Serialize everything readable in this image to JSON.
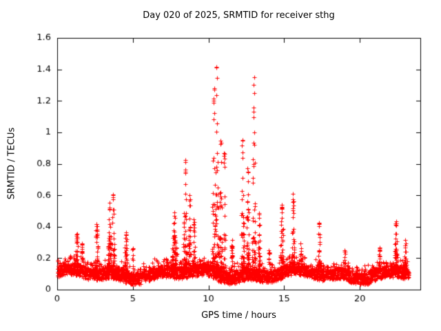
{
  "figure": {
    "background": "#ffffff",
    "border_color": "#000000",
    "text_color": "#000000"
  },
  "chart_data": {
    "type": "scatter",
    "title": "Day 020 of 2025, SRMTID for receiver sthg",
    "xlabel": "GPS time / hours",
    "ylabel": "SRMTID / TECUs",
    "xlim": [
      0,
      24
    ],
    "ylim": [
      0,
      1.6
    ],
    "xticks": [
      0,
      5,
      10,
      15,
      20
    ],
    "yticks": [
      0,
      0.2,
      0.4,
      0.6,
      0.8,
      1,
      1.2,
      1.4,
      1.6
    ],
    "grid": false,
    "legend": "none",
    "marker": "plus",
    "marker_color": "#ff0000",
    "series": [
      {
        "name": "SRMTID",
        "t_range": [
          0,
          23.25
        ],
        "cadence_hours": 0.01,
        "seed": 20250120,
        "baseline": {
          "typ": 0.1,
          "min": 0.04,
          "max": 0.2
        },
        "bursts": [
          {
            "t": 0.9,
            "peak": 0.22,
            "w": 0.1
          },
          {
            "t": 1.3,
            "peak": 0.35,
            "w": 0.12
          },
          {
            "t": 1.65,
            "peak": 0.3,
            "w": 0.08
          },
          {
            "t": 2.6,
            "peak": 0.42,
            "w": 0.12
          },
          {
            "t": 3.45,
            "peak": 0.55,
            "w": 0.12
          },
          {
            "t": 3.7,
            "peak": 0.61,
            "w": 0.1
          },
          {
            "t": 4.55,
            "peak": 0.38,
            "w": 0.12
          },
          {
            "t": 5.0,
            "peak": 0.27,
            "w": 0.08
          },
          {
            "t": 7.75,
            "peak": 0.5,
            "w": 0.18
          },
          {
            "t": 8.45,
            "peak": 0.83,
            "w": 0.1
          },
          {
            "t": 8.75,
            "peak": 0.62,
            "w": 0.08
          },
          {
            "t": 9.05,
            "peak": 0.45,
            "w": 0.07
          },
          {
            "t": 10.35,
            "peak": 1.3,
            "w": 0.1
          },
          {
            "t": 10.55,
            "peak": 1.47,
            "w": 0.08
          },
          {
            "t": 10.8,
            "peak": 0.95,
            "w": 0.08
          },
          {
            "t": 11.05,
            "peak": 0.9,
            "w": 0.06
          },
          {
            "t": 11.55,
            "peak": 0.3,
            "w": 0.08
          },
          {
            "t": 12.25,
            "peak": 0.97,
            "w": 0.1
          },
          {
            "t": 12.6,
            "peak": 0.8,
            "w": 0.08
          },
          {
            "t": 13.0,
            "peak": 1.35,
            "w": 0.09
          },
          {
            "t": 13.35,
            "peak": 0.5,
            "w": 0.08
          },
          {
            "t": 14.0,
            "peak": 0.25,
            "w": 0.1
          },
          {
            "t": 14.85,
            "peak": 0.55,
            "w": 0.12
          },
          {
            "t": 15.6,
            "peak": 0.62,
            "w": 0.1
          },
          {
            "t": 16.1,
            "peak": 0.3,
            "w": 0.08
          },
          {
            "t": 17.3,
            "peak": 0.45,
            "w": 0.08
          },
          {
            "t": 19.0,
            "peak": 0.25,
            "w": 0.12
          },
          {
            "t": 21.3,
            "peak": 0.27,
            "w": 0.1
          },
          {
            "t": 22.4,
            "peak": 0.45,
            "w": 0.12
          },
          {
            "t": 23.0,
            "peak": 0.3,
            "w": 0.12
          }
        ]
      }
    ]
  }
}
